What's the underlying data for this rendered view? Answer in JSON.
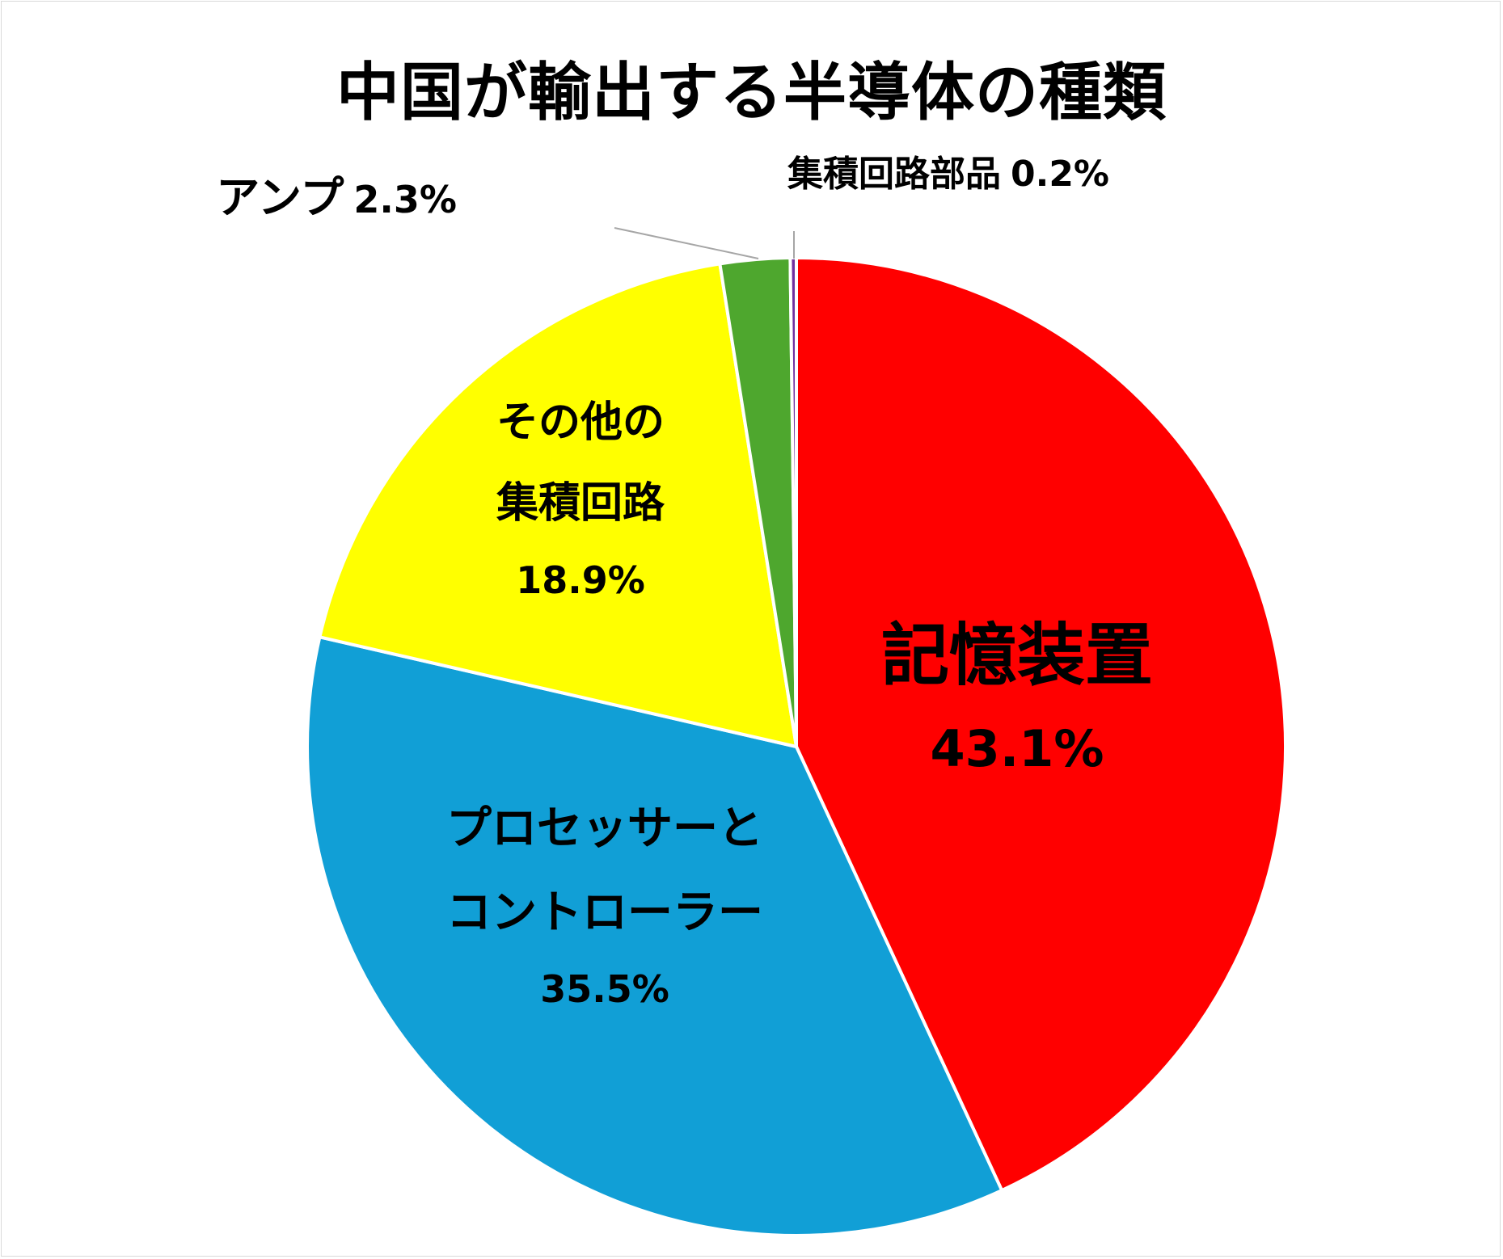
{
  "chart_data": {
    "type": "pie",
    "title": "中国が輸出する半導体の種類",
    "start_angle_deg": 0,
    "direction": "clockwise",
    "legend": "none",
    "slices": [
      {
        "label_lines": [
          "記憶装置"
        ],
        "value": 43.1,
        "value_label": "43.1%",
        "color": "#ff0000",
        "label_position": "inside"
      },
      {
        "label_lines": [
          "プロセッサーと",
          "コントローラー"
        ],
        "value": 35.5,
        "value_label": "35.5%",
        "color": "#119fd6",
        "label_position": "inside"
      },
      {
        "label_lines": [
          "その他の",
          "集積回路"
        ],
        "value": 18.9,
        "value_label": "18.9%",
        "color": "#ffff00",
        "label_position": "inside"
      },
      {
        "label_lines": [
          "アンプ"
        ],
        "value": 2.3,
        "value_label": "2.3%",
        "color": "#4ea72e",
        "label_position": "outside-left"
      },
      {
        "label_lines": [
          "集積回路部品"
        ],
        "value": 0.2,
        "value_label": "0.2%",
        "color": "#7030a0",
        "label_position": "outside-top"
      }
    ]
  }
}
